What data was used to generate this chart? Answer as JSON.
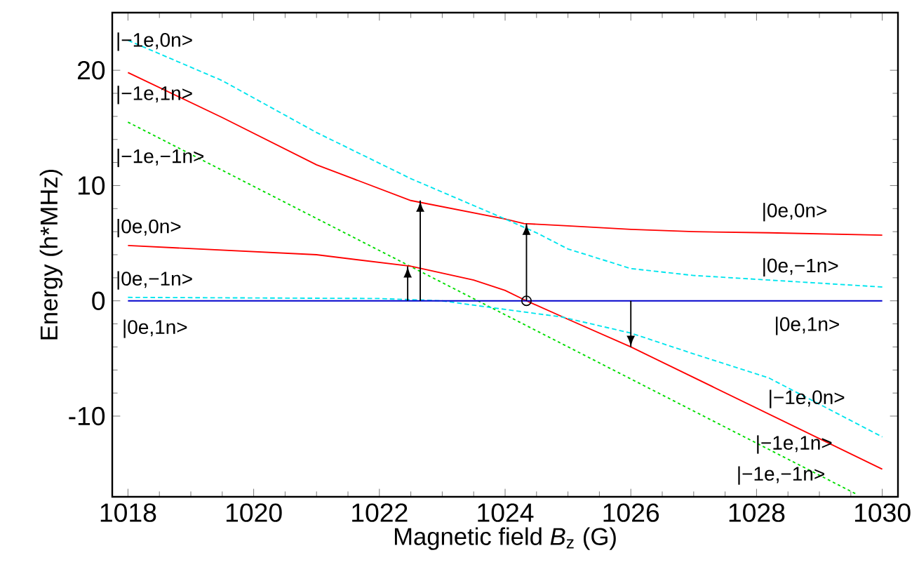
{
  "chart_data": {
    "type": "line",
    "xlabel": "Magnetic field *B*$_{z}$ (G)",
    "ylabel": "Energy (h*MHz)",
    "xlim": [
      1017.75,
      1030.25
    ],
    "ylim": [
      -17,
      25
    ],
    "xticks": [
      1018,
      1020,
      1022,
      1024,
      1026,
      1028,
      1030
    ],
    "yticks": [
      -10,
      0,
      10,
      20
    ],
    "series": [
      {
        "color": "#ff0000",
        "line_style": "solid",
        "x": [
          1018,
          1019.5,
          1021,
          1022.5,
          1024,
          1024.3,
          1025,
          1026,
          1027,
          1028.2,
          1030
        ],
        "values": [
          19.8,
          15.9,
          11.8,
          8.7,
          7.1,
          6.7,
          6.5,
          6.2,
          6.0,
          5.9,
          5.7
        ]
      },
      {
        "color": "#00e5ee",
        "line_style": "dashed",
        "x": [
          1018,
          1019.5,
          1021,
          1022.5,
          1024,
          1024.5,
          1025,
          1026,
          1027,
          1028.2,
          1030
        ],
        "values": [
          22.6,
          19.1,
          14.6,
          10.6,
          7.1,
          5.9,
          4.5,
          2.8,
          2.2,
          1.8,
          1.2
        ]
      },
      {
        "color": "#00dd00",
        "line_style": "dotted",
        "x": [
          1018,
          1029.6
        ],
        "values": [
          15.5,
          -16.8
        ]
      },
      {
        "color": "#ff0000",
        "line_style": "solid",
        "x": [
          1018,
          1021,
          1022.5,
          1023.5,
          1024,
          1024.34,
          1025,
          1026,
          1030
        ],
        "values": [
          4.8,
          4.0,
          3.0,
          1.8,
          0.9,
          0,
          -1.6,
          -4.0,
          -14.6
        ]
      },
      {
        "color": "#00e5ee",
        "line_style": "dashed",
        "x": [
          1018,
          1022,
          1023,
          1023.8,
          1024.9,
          1026,
          1027,
          1028.2,
          1030
        ],
        "values": [
          0.3,
          0.2,
          0,
          -0.6,
          -1.4,
          -2.8,
          -4.6,
          -6.7,
          -11.8
        ]
      },
      {
        "color": "#0000cc",
        "line_style": "solid",
        "x": [
          1018,
          1030
        ],
        "values": [
          0,
          0
        ]
      },
      {
        "color": "#000000",
        "line_style": "solid",
        "x": [
          1022.45,
          1022.45
        ],
        "values": [
          0,
          3.0
        ]
      },
      {
        "color": "#000000",
        "line_style": "solid",
        "x": [
          1022.65,
          1022.65
        ],
        "values": [
          0,
          8.7
        ]
      },
      {
        "color": "#000000",
        "line_style": "solid",
        "x": [
          1024.34,
          1024.34
        ],
        "values": [
          0,
          6.7
        ]
      },
      {
        "color": "#000000",
        "line_style": "solid",
        "x": [
          1026,
          1026
        ],
        "values": [
          0,
          -4.0
        ]
      },
      {
        "type": "scatter",
        "color": "#000000",
        "marker": "circle",
        "x": [
          1024.34
        ],
        "values": [
          0
        ]
      }
    ],
    "annotations": [
      "|−1e,0n>",
      "|−1e,1n>",
      "|−1e,−1n>",
      "|0e,0n>",
      "|0e,−1n>",
      "|0e,1n>",
      "|0e,0n>",
      "|0e,−1n>",
      "|0e,1n>",
      "|−1e,0n>",
      "|−1e,1n>",
      "|−1e,−1n>"
    ]
  }
}
